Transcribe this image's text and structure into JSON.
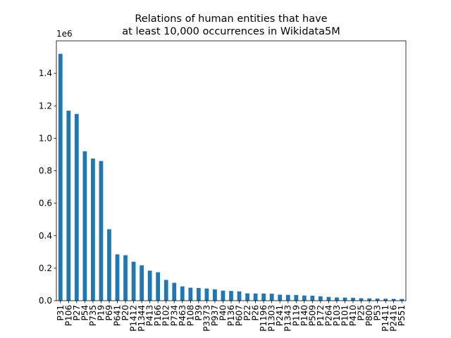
{
  "chart_data": {
    "type": "bar",
    "title": [
      "Relations of human entities that have",
      "at least 10,000 occurrences in Wikidata5M"
    ],
    "y_offset_label": "1e6",
    "categories": [
      "P31",
      "P106",
      "P27",
      "P54",
      "P735",
      "P19",
      "P69",
      "P641",
      "P20",
      "P1412",
      "P1344",
      "P413",
      "P166",
      "P102",
      "P734",
      "P463",
      "P108",
      "P39",
      "P3373",
      "P937",
      "P40",
      "P136",
      "P607",
      "P22",
      "P26",
      "P1196",
      "P1303",
      "P241",
      "P1343",
      "P119",
      "P140",
      "P509",
      "P172",
      "P264",
      "P103",
      "P101",
      "P410",
      "P25",
      "P800",
      "P53",
      "P1411",
      "P2416",
      "P551"
    ],
    "values": [
      1520000,
      1170000,
      1150000,
      920000,
      875000,
      860000,
      440000,
      285000,
      280000,
      240000,
      218000,
      185000,
      175000,
      128000,
      110000,
      88000,
      80000,
      78000,
      75000,
      70000,
      62000,
      60000,
      57000,
      45000,
      44000,
      44000,
      43000,
      37000,
      36000,
      35000,
      32000,
      31000,
      27000,
      23000,
      20000,
      19000,
      18000,
      15000,
      14000,
      13000,
      12000,
      11000,
      10500
    ],
    "color": "#1f77b4",
    "ylim": [
      0,
      1600000
    ],
    "yticks": [
      {
        "value": 0,
        "label": "0.0"
      },
      {
        "value": 200000,
        "label": "0.2"
      },
      {
        "value": 400000,
        "label": "0.4"
      },
      {
        "value": 600000,
        "label": "0.6"
      },
      {
        "value": 800000,
        "label": "0.8"
      },
      {
        "value": 1000000,
        "label": "1.0"
      },
      {
        "value": 1200000,
        "label": "1.2"
      },
      {
        "value": 1400000,
        "label": "1.4"
      }
    ],
    "grid": false
  }
}
